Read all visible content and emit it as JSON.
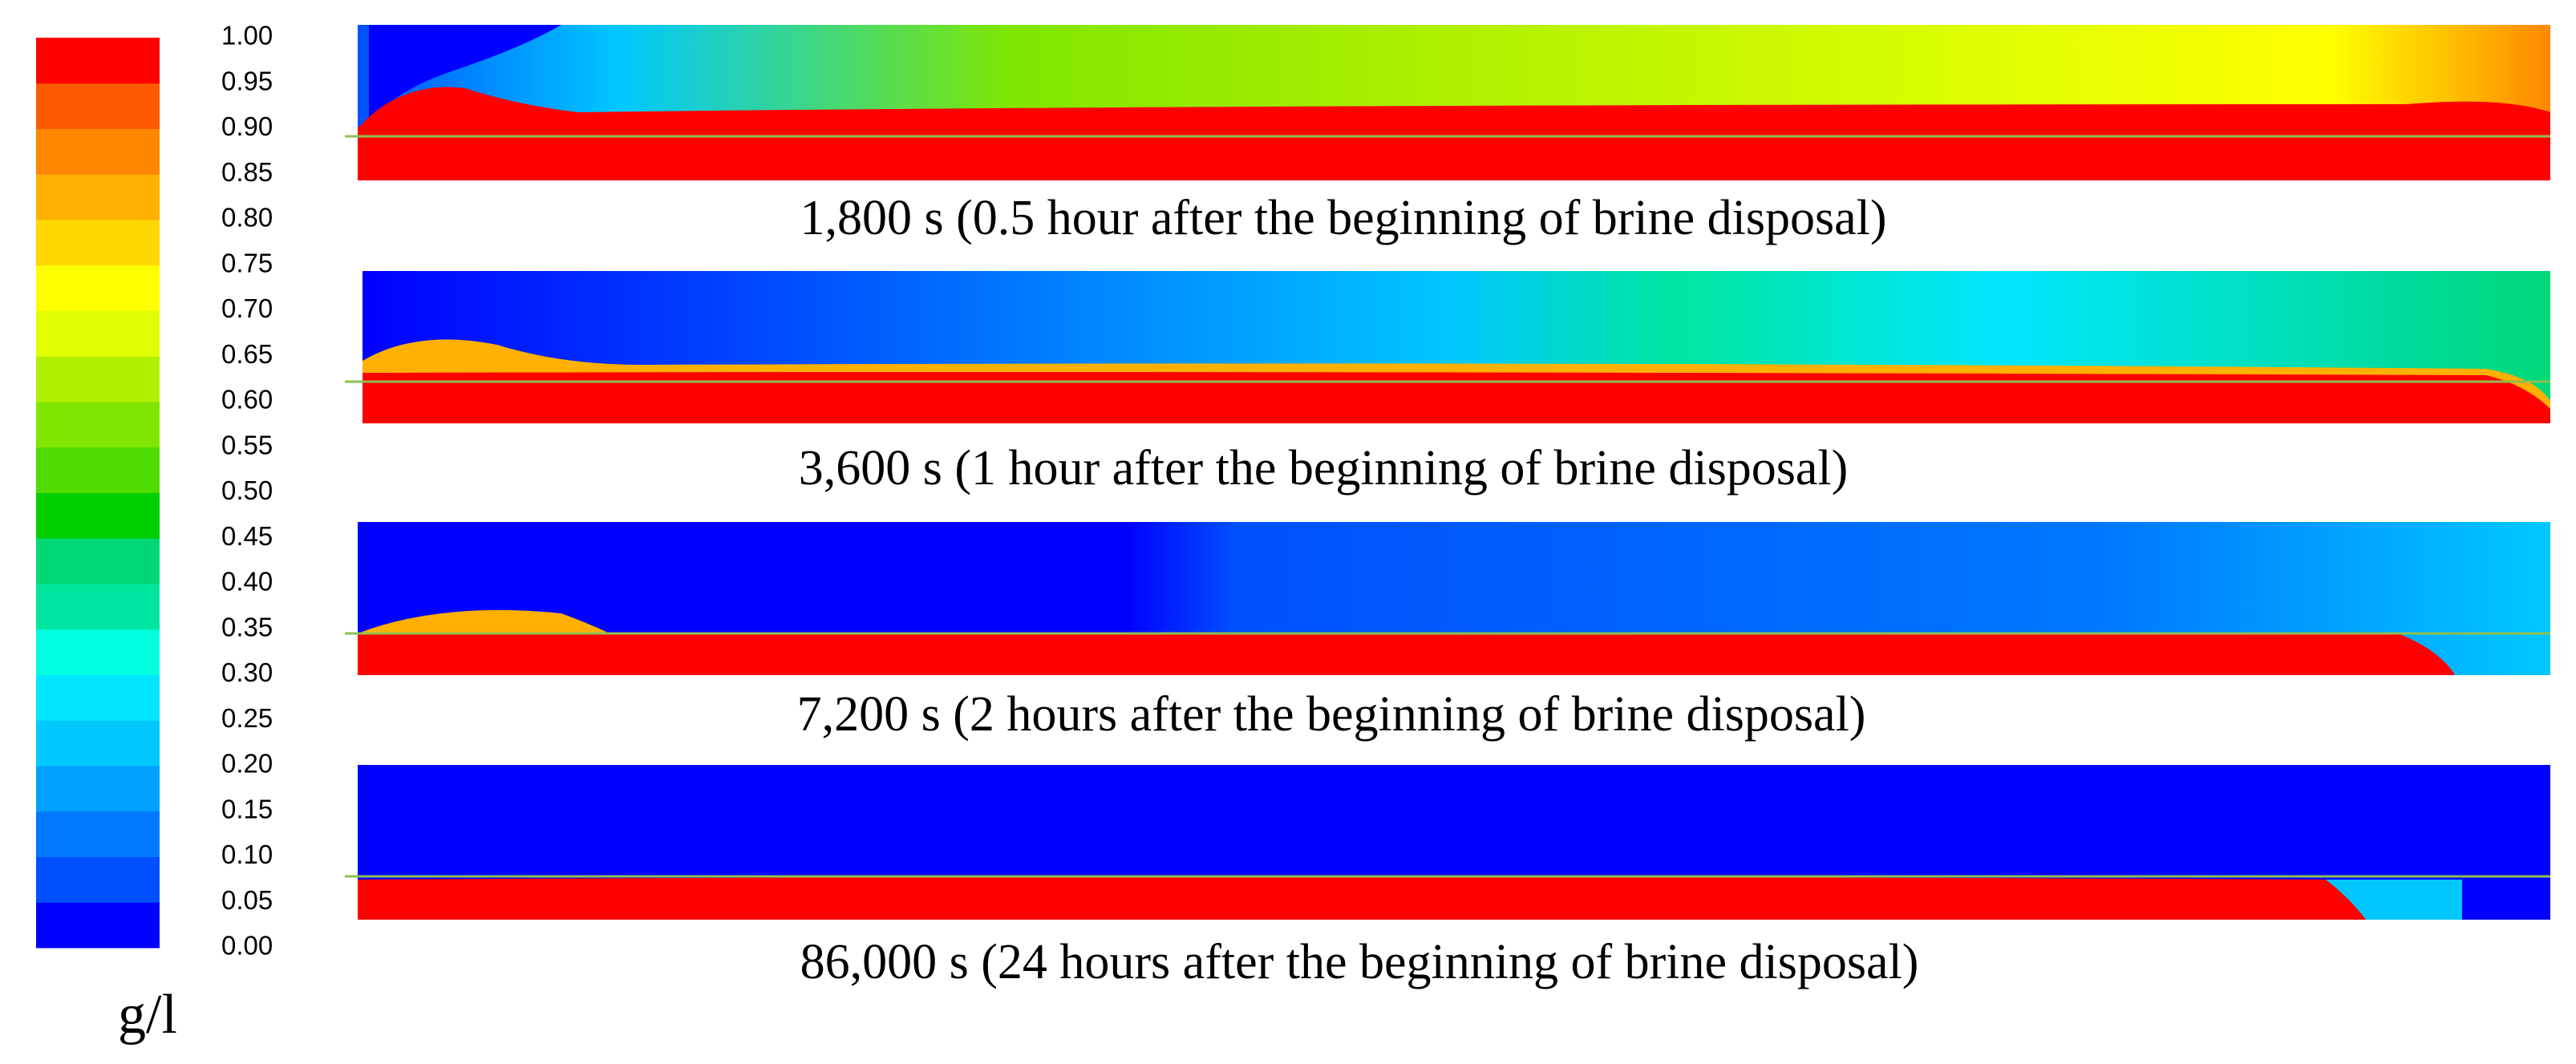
{
  "colorbar": {
    "ticks": [
      {
        "value": 0,
        "label": "0.00"
      },
      {
        "value": 0.05,
        "label": "0.05"
      },
      {
        "value": 0.1,
        "label": "0.10"
      },
      {
        "value": 0.15,
        "label": "0.15"
      },
      {
        "value": 0.2,
        "label": "0.20"
      },
      {
        "value": 0.25,
        "label": "0.25"
      },
      {
        "value": 0.3,
        "label": "0.30"
      },
      {
        "value": 0.35,
        "label": "0.35"
      },
      {
        "value": 0.4,
        "label": "0.40"
      },
      {
        "value": 0.45,
        "label": "0.45"
      },
      {
        "value": 0.5,
        "label": "0.50"
      },
      {
        "value": 0.55,
        "label": "0.55"
      },
      {
        "value": 0.6,
        "label": "0.60"
      },
      {
        "value": 0.65,
        "label": "0.65"
      },
      {
        "value": 0.7,
        "label": "0.70"
      },
      {
        "value": 0.75,
        "label": "0.75"
      },
      {
        "value": 0.8,
        "label": "0.80"
      },
      {
        "value": 0.85,
        "label": "0.85"
      },
      {
        "value": 0.9,
        "label": "0.90"
      },
      {
        "value": 0.95,
        "label": "0.95"
      },
      {
        "value": 1,
        "label": "1.00"
      }
    ],
    "colors": [
      "#0000ff",
      "#0050ff",
      "#0078ff",
      "#00a0ff",
      "#00c8ff",
      "#00e6ff",
      "#00ffe0",
      "#00e6a0",
      "#00d878",
      "#00d000",
      "#50dc00",
      "#80e600",
      "#b0f000",
      "#e0ff00",
      "#ffff00",
      "#ffd800",
      "#ffb000",
      "#ff8800",
      "#ff5a00",
      "#ff0000"
    ],
    "unit": "g/l"
  },
  "panels": [
    {
      "caption": "1,800 s (0.5 hour after the beginning of brine disposal)"
    },
    {
      "caption": "3,600 s (1 hour after the beginning of brine disposal)"
    },
    {
      "caption": "7,200 s (2 hours after the beginning of brine disposal)"
    },
    {
      "caption": "86,000 s (24 hours after the beginning of brine disposal)"
    }
  ]
}
